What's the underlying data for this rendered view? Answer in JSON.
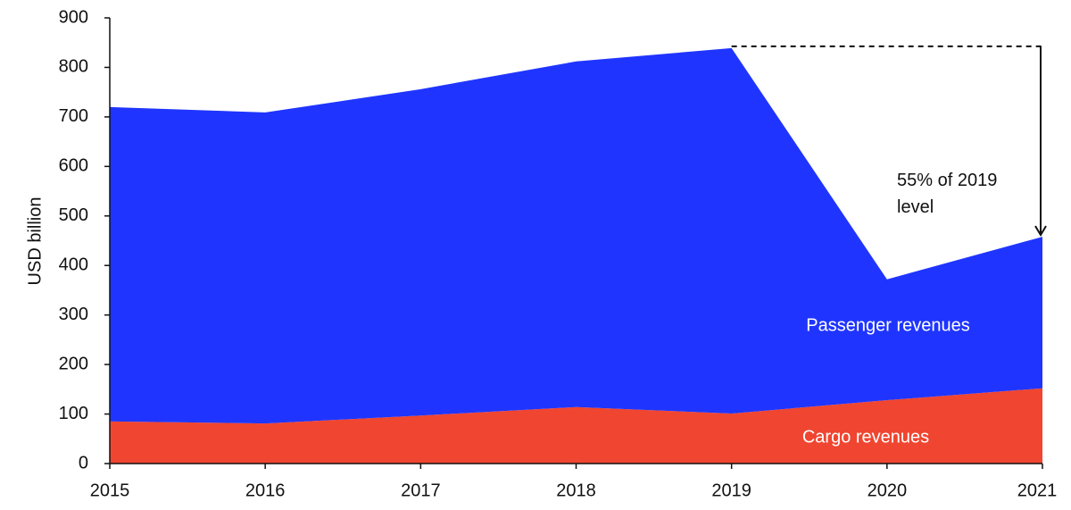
{
  "chart_data": {
    "type": "stacked-area",
    "y_label": "USD billion",
    "x": [
      "2015",
      "2016",
      "2017",
      "2018",
      "2019",
      "2020",
      "2021"
    ],
    "series": [
      {
        "name": "Cargo revenues",
        "color": "#f04530",
        "values": [
          85,
          81,
          97,
          114,
          101,
          128,
          152
        ]
      },
      {
        "name": "Passenger revenues",
        "color": "#1f35ff",
        "values": [
          635,
          628,
          659,
          698,
          738,
          244,
          306
        ]
      }
    ],
    "ylim": [
      0,
      900
    ],
    "yticks": [
      0,
      100,
      200,
      300,
      400,
      500,
      600,
      700,
      800,
      900
    ],
    "annotation": "55% of 2019 level"
  }
}
